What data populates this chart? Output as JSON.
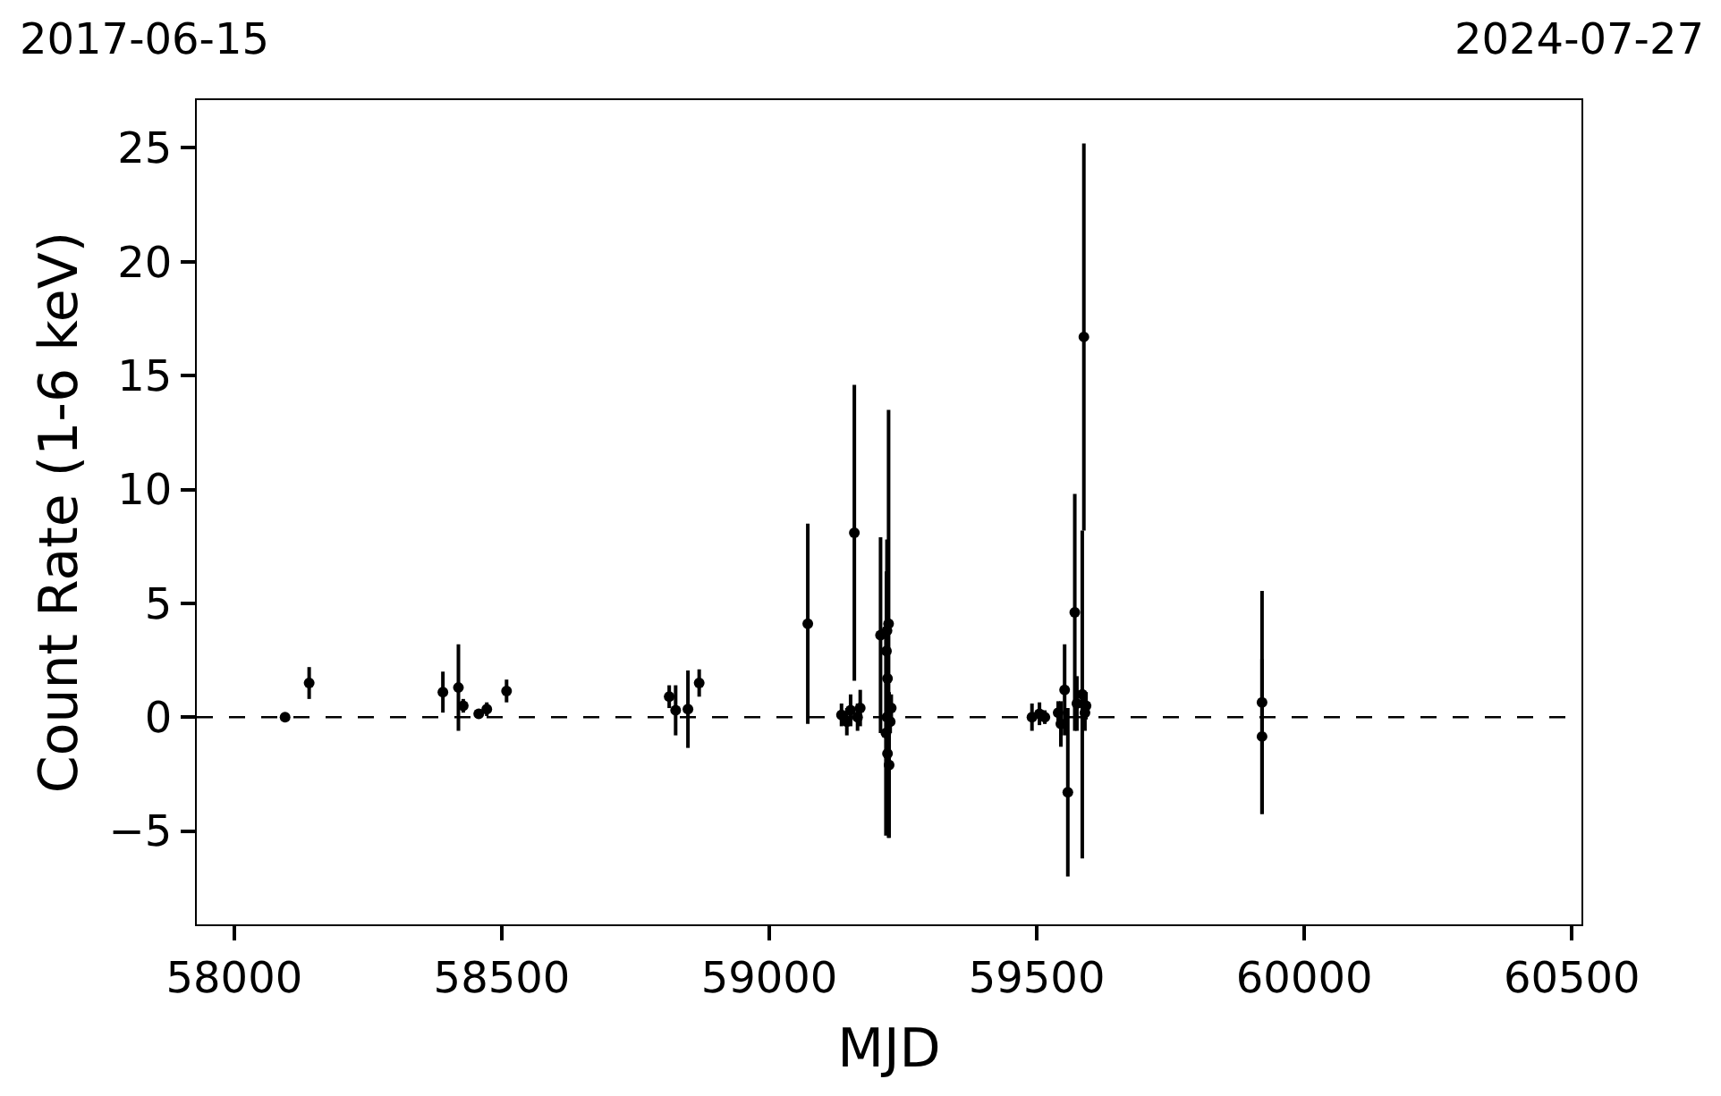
{
  "chart_data": {
    "type": "scatter",
    "xlabel": "MJD",
    "ylabel": "Count Rate (1-6 keV)",
    "annotations": [
      "2017-06-15",
      "2024-07-27"
    ],
    "xlim": [
      57930,
      60518
    ],
    "xticks": [
      58000,
      58500,
      59000,
      59500,
      60000,
      60500
    ],
    "ylim": [
      -9.1,
      27.1
    ],
    "yticks": [
      {
        "value": -5,
        "label": "−5"
      },
      0,
      5,
      10,
      15,
      20,
      25
    ],
    "grid": false,
    "marker": "circle",
    "ref_lines": [
      {
        "axis": "y",
        "value": 0,
        "label": null,
        "color": "#000000",
        "line_style": "dashed"
      }
    ],
    "series": [
      {
        "color": "#000000",
        "x": [
          58095,
          58140,
          58390,
          58419,
          58428,
          58457,
          58472,
          58509,
          58813,
          58825,
          58848,
          58869,
          59072,
          59159,
          59135,
          59145,
          59152,
          59165,
          59170,
          59208,
          59223,
          59220,
          59219,
          59221,
          59220,
          59228,
          59226,
          59218,
          59221,
          59224,
          59491,
          59505,
          59515,
          59540,
          59545,
          59552,
          59558,
          59571,
          59575,
          59585,
          59588,
          59590,
          59592,
          59921,
          59921
        ],
        "values": [
          0,
          1.5,
          1.1,
          1.3,
          0.5,
          0.15,
          0.35,
          1.15,
          0.9,
          0.3,
          0.35,
          1.5,
          4.1,
          8.1,
          0.1,
          -0.2,
          0.3,
          0.0,
          0.4,
          3.6,
          4.1,
          3.8,
          2.9,
          1.7,
          0.0,
          0.4,
          -0.2,
          -0.7,
          -1.6,
          -2.1,
          0.0,
          0.15,
          0.0,
          0.2,
          -0.3,
          1.2,
          -3.3,
          4.6,
          0.6,
          1.0,
          16.7,
          0.2,
          0.5,
          0.65,
          -0.85
        ],
        "errors": [
          0.1,
          0.7,
          0.9,
          1.9,
          0.3,
          0.2,
          0.3,
          0.5,
          0.5,
          1.1,
          1.7,
          0.6,
          4.4,
          6.5,
          0.5,
          0.6,
          0.7,
          0.6,
          0.8,
          4.3,
          9.4,
          4.0,
          3.5,
          2.5,
          1.5,
          0.6,
          0.5,
          4.5,
          3.5,
          3.2,
          0.6,
          0.5,
          0.3,
          0.5,
          1.0,
          2.0,
          3.7,
          5.2,
          1.2,
          7.2,
          8.5,
          0.8,
          0.6,
          4.9,
          3.4
        ]
      }
    ]
  }
}
